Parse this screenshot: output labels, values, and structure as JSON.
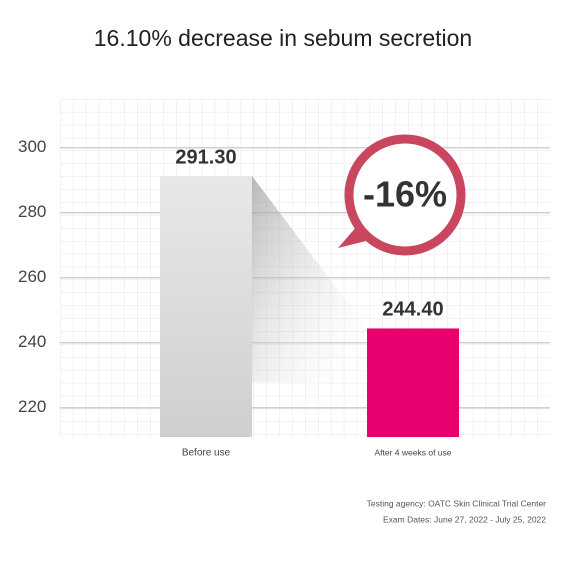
{
  "chart_data": {
    "type": "bar",
    "title": "16.10% decrease in sebum secretion",
    "categories": [
      "Before use",
      "After 4 weeks of use"
    ],
    "values": [
      291.3,
      244.4
    ],
    "value_labels": [
      "291.30",
      "244.40"
    ],
    "colors": [
      "#dcdcdc",
      "#e8006f"
    ],
    "ylim": [
      211,
      315
    ],
    "yticks": [
      220,
      240,
      260,
      280,
      300
    ],
    "grid": true,
    "annotation": "-16%",
    "notes": [
      "Testing agency: OATC Skin Clinical Trial Center",
      "Exam Dates: June 27, 2022 - July 25, 2022"
    ]
  }
}
